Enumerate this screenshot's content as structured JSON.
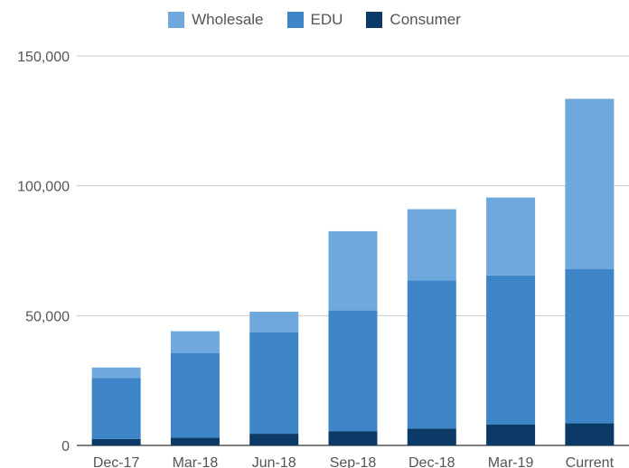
{
  "chart_data": {
    "type": "bar",
    "stacked": true,
    "categories": [
      "Dec-17",
      "Mar-18",
      "Jun-18",
      "Sep-18",
      "Dec-18",
      "Mar-19",
      "Current"
    ],
    "series": [
      {
        "name": "Consumer",
        "color": "#0b3a66",
        "values": [
          2500,
          3000,
          4500,
          5500,
          6500,
          8000,
          8500
        ]
      },
      {
        "name": "EDU",
        "color": "#3d85c6",
        "values": [
          23500,
          32500,
          39000,
          46500,
          57000,
          57500,
          59500
        ]
      },
      {
        "name": "Wholesale",
        "color": "#6fa8dc",
        "values": [
          4000,
          8500,
          8000,
          30500,
          27500,
          30000,
          65500
        ]
      }
    ],
    "legend": {
      "position": "top",
      "order": [
        "Wholesale",
        "EDU",
        "Consumer"
      ]
    },
    "ylim": [
      0,
      150000
    ],
    "yticks": [
      0,
      50000,
      100000,
      150000
    ],
    "ytick_labels": [
      "0",
      "50,000",
      "100,000",
      "150,000"
    ],
    "grid": true,
    "title": "",
    "xlabel": "",
    "ylabel": ""
  }
}
